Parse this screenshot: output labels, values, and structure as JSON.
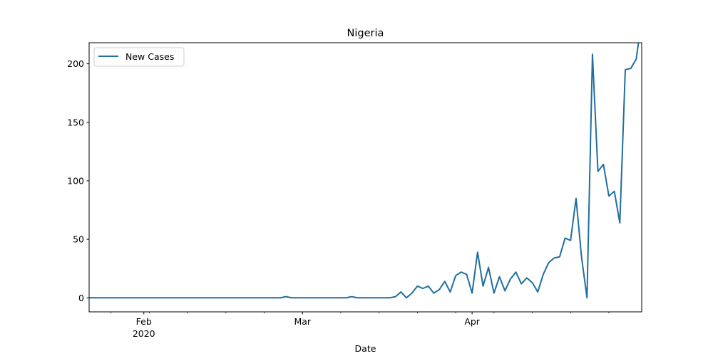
{
  "chart_data": {
    "type": "line",
    "title": "Nigeria",
    "xlabel": "Date",
    "ylabel": "",
    "ylim": [
      -12,
      218
    ],
    "xlim": [
      "2020-01-22",
      "2020-05-02"
    ],
    "grid": false,
    "legend": {
      "position": "upper-left",
      "entries": [
        "New Cases"
      ]
    },
    "colors": {
      "series": "#1f6f9f"
    },
    "y_ticks": [
      0,
      50,
      100,
      150,
      200
    ],
    "x_ticks": [
      {
        "date": "2020-02-01",
        "label": "Feb",
        "sublabel": "2020"
      },
      {
        "date": "2020-03-01",
        "label": "Mar",
        "sublabel": ""
      },
      {
        "date": "2020-04-01",
        "label": "Apr",
        "sublabel": ""
      }
    ],
    "x_minor_ticks_every_days": 7,
    "x_minor_tick_start": "2020-01-26",
    "series": [
      {
        "name": "New Cases",
        "x": [
          "2020-01-22",
          "2020-01-23",
          "2020-01-24",
          "2020-01-25",
          "2020-01-26",
          "2020-01-27",
          "2020-01-28",
          "2020-01-29",
          "2020-01-30",
          "2020-01-31",
          "2020-02-01",
          "2020-02-02",
          "2020-02-03",
          "2020-02-04",
          "2020-02-05",
          "2020-02-06",
          "2020-02-07",
          "2020-02-08",
          "2020-02-09",
          "2020-02-10",
          "2020-02-11",
          "2020-02-12",
          "2020-02-13",
          "2020-02-14",
          "2020-02-15",
          "2020-02-16",
          "2020-02-17",
          "2020-02-18",
          "2020-02-19",
          "2020-02-20",
          "2020-02-21",
          "2020-02-22",
          "2020-02-23",
          "2020-02-24",
          "2020-02-25",
          "2020-02-26",
          "2020-02-27",
          "2020-02-28",
          "2020-02-29",
          "2020-03-01",
          "2020-03-02",
          "2020-03-03",
          "2020-03-04",
          "2020-03-05",
          "2020-03-06",
          "2020-03-07",
          "2020-03-08",
          "2020-03-09",
          "2020-03-10",
          "2020-03-11",
          "2020-03-12",
          "2020-03-13",
          "2020-03-14",
          "2020-03-15",
          "2020-03-16",
          "2020-03-17",
          "2020-03-18",
          "2020-03-19",
          "2020-03-20",
          "2020-03-21",
          "2020-03-22",
          "2020-03-23",
          "2020-03-24",
          "2020-03-25",
          "2020-03-26",
          "2020-03-27",
          "2020-03-28",
          "2020-03-29",
          "2020-03-30",
          "2020-03-31",
          "2020-04-01",
          "2020-04-02",
          "2020-04-03",
          "2020-04-04",
          "2020-04-05",
          "2020-04-06",
          "2020-04-07",
          "2020-04-08",
          "2020-04-09",
          "2020-04-10",
          "2020-04-11",
          "2020-04-12",
          "2020-04-13",
          "2020-04-14",
          "2020-04-15",
          "2020-04-16",
          "2020-04-17",
          "2020-04-18",
          "2020-04-19",
          "2020-04-20",
          "2020-04-21",
          "2020-04-22",
          "2020-04-23",
          "2020-04-24",
          "2020-04-25",
          "2020-04-26",
          "2020-04-27",
          "2020-04-28",
          "2020-04-29",
          "2020-04-30",
          "2020-05-01",
          "2020-05-02"
        ],
        "values": [
          0,
          0,
          0,
          0,
          0,
          0,
          0,
          0,
          0,
          0,
          0,
          0,
          0,
          0,
          0,
          0,
          0,
          0,
          0,
          0,
          0,
          0,
          0,
          0,
          0,
          0,
          0,
          0,
          0,
          0,
          0,
          0,
          0,
          0,
          0,
          0,
          1,
          0,
          0,
          0,
          0,
          0,
          0,
          0,
          0,
          0,
          0,
          0,
          1,
          0,
          0,
          0,
          0,
          0,
          0,
          0,
          1,
          5,
          0,
          4,
          10,
          8,
          10,
          4,
          7,
          14,
          5,
          19,
          22,
          20,
          4,
          39,
          10,
          26,
          4,
          18,
          6,
          16,
          22,
          12,
          17,
          13,
          5,
          20,
          30,
          34,
          35,
          51,
          49,
          85,
          35,
          0,
          208,
          108,
          114,
          87,
          91,
          64,
          195,
          196,
          204,
          238
        ]
      }
    ]
  }
}
